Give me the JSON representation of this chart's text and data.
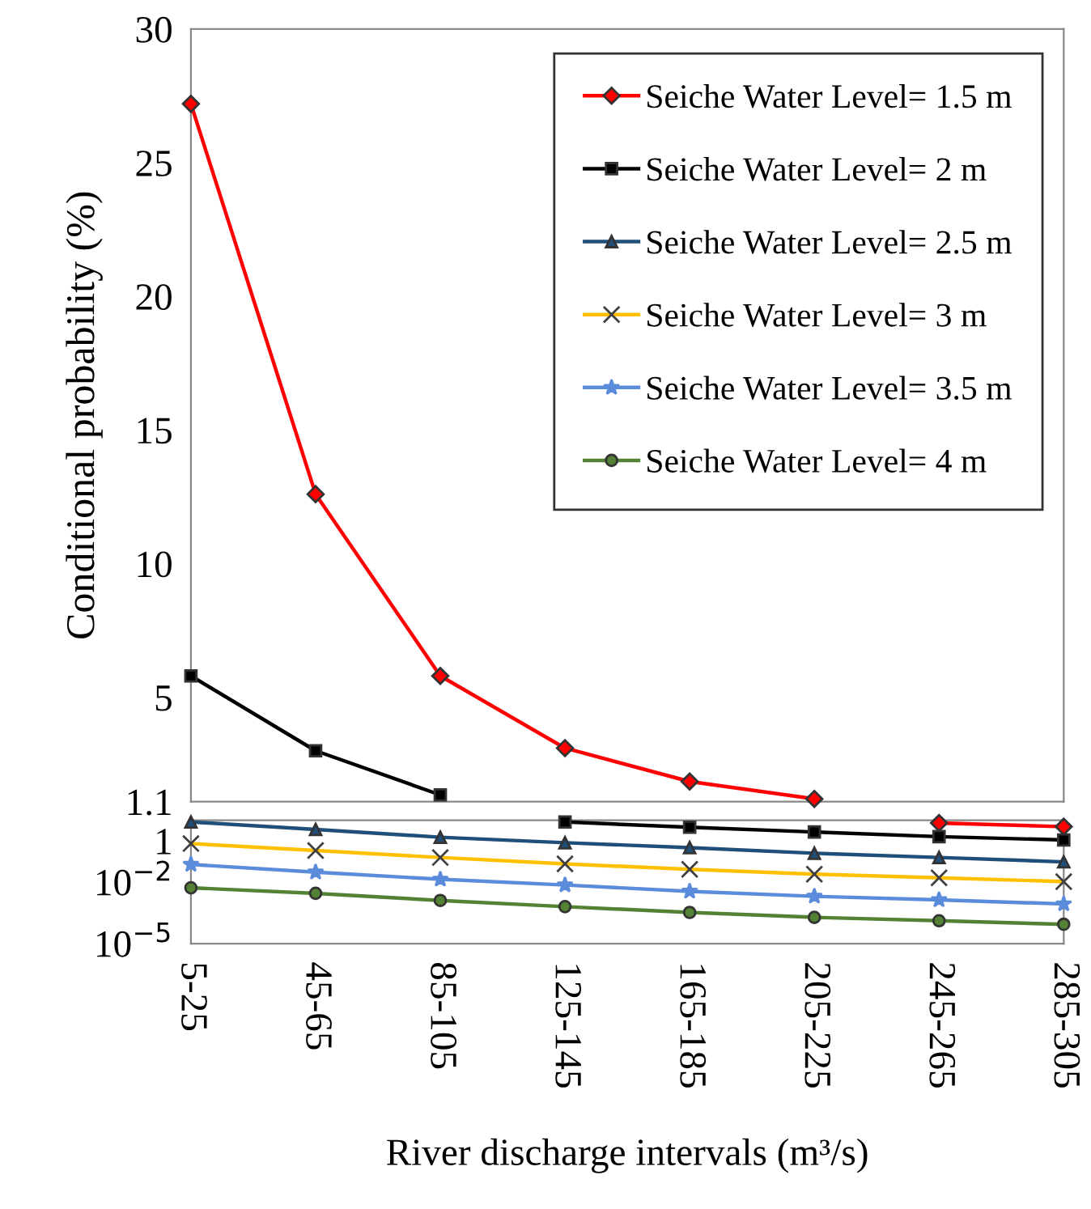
{
  "chart_data": [
    {
      "type": "line",
      "ylabel": "Conditional probability (%)",
      "categories": [
        null,
        null,
        null,
        null,
        null,
        null,
        null,
        null
      ],
      "ylim": [
        1.1,
        30
      ],
      "yticks": [
        1.1,
        5,
        10,
        15,
        20,
        25,
        30
      ],
      "tick_labels": "y",
      "grid": false,
      "legend": "top right",
      "series": [
        {
          "name": "Seiche Water Level= 1.5 m",
          "color": "#ff0000",
          "marker": "diamond",
          "values": [
            27.2,
            12.6,
            5.8,
            3.1,
            1.85,
            1.2,
            null,
            null
          ]
        },
        {
          "name": "Seiche Water Level= 2 m",
          "color": "#000000",
          "marker": "square",
          "values": [
            5.8,
            3.0,
            1.35,
            null,
            null,
            null,
            null,
            null
          ]
        },
        {
          "name": "Seiche Water Level= 2.5 m",
          "color": "#1f4e79",
          "marker": "triangle",
          "values": [
            null,
            null,
            null,
            null,
            null,
            null,
            null,
            null
          ]
        },
        {
          "name": "Seiche Water Level= 3 m",
          "color": "#ffc000",
          "marker": "cross",
          "values": [
            null,
            null,
            null,
            null,
            null,
            null,
            null,
            null
          ]
        },
        {
          "name": "Seiche Water Level= 3.5 m",
          "color": "#5b8bdb",
          "marker": "star",
          "values": [
            null,
            null,
            null,
            null,
            null,
            null,
            null,
            null
          ]
        },
        {
          "name": "Seiche Water Level= 4 m",
          "color": "#548235",
          "marker": "circle",
          "values": [
            null,
            null,
            null,
            null,
            null,
            null,
            null,
            null
          ]
        }
      ]
    },
    {
      "type": "line",
      "xlabel": "River discharge intervals (m³/s)",
      "categories": [
        "5-25",
        "45-65",
        "85-105",
        "125-145",
        "165-185",
        "205-225",
        "245-265",
        "285-305"
      ],
      "log": "y",
      "ylim": [
        1e-05,
        10
      ],
      "yticks": [
        1,
        {
          "value": 0.01,
          "label": "10$^{−2}$"
        },
        {
          "value": 1e-05,
          "label": "10$^{−5}$"
        }
      ],
      "grid": false,
      "series": [
        {
          "color": "#ff0000",
          "marker": "diamond",
          "values": [
            null,
            null,
            null,
            null,
            null,
            null,
            7.4,
            4.9
          ]
        },
        {
          "color": "#000000",
          "marker": "square",
          "values": [
            null,
            null,
            null,
            8.3,
            4.6,
            2.7,
            1.6,
            1.1
          ]
        },
        {
          "color": "#1f4e79",
          "marker": "triangle",
          "values": [
            8.3,
            3.6,
            1.5,
            0.81,
            0.47,
            0.25,
            0.155,
            0.095
          ]
        },
        {
          "color": "#ffc000",
          "marker": "cross",
          "values": [
            0.74,
            0.34,
            0.155,
            0.076,
            0.041,
            0.024,
            0.016,
            0.0104
          ]
        },
        {
          "color": "#5b8bdb",
          "marker": "star",
          "values": [
            0.071,
            0.03,
            0.0135,
            0.0071,
            0.0035,
            0.002,
            0.00135,
            0.00085
          ]
        },
        {
          "color": "#548235",
          "marker": "circle",
          "values": [
            0.0052,
            0.0028,
            0.00126,
            0.00063,
            0.00033,
            0.00019,
            0.00013,
            8.7e-05
          ]
        }
      ]
    }
  ]
}
